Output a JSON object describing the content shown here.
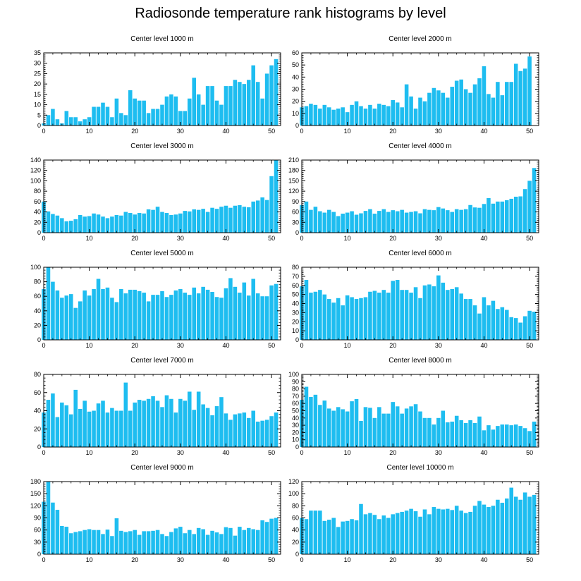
{
  "title": "Radiosonde temperature rank histograms by level",
  "bar_color": "#1ebdf0",
  "chart_data": [
    {
      "type": "bar",
      "title": "Center level 1000 m",
      "xlabel": "",
      "ylabel": "",
      "xlim": [
        0,
        52
      ],
      "ylim": [
        0,
        35
      ],
      "xticks": [
        0,
        10,
        20,
        30,
        40,
        50
      ],
      "yticks": [
        0,
        5,
        10,
        15,
        20,
        25,
        30,
        35
      ],
      "x": [
        0,
        1,
        2,
        3,
        4,
        5,
        6,
        7,
        8,
        9,
        10,
        11,
        12,
        13,
        14,
        15,
        16,
        17,
        18,
        19,
        20,
        21,
        22,
        23,
        24,
        25,
        26,
        27,
        28,
        29,
        30,
        31,
        32,
        33,
        34,
        35,
        36,
        37,
        38,
        39,
        40,
        41,
        42,
        43,
        44,
        45,
        46,
        47,
        48,
        49,
        50,
        51
      ],
      "values": [
        1,
        5,
        8,
        3,
        1,
        7,
        4,
        4,
        2,
        3,
        4,
        9,
        9,
        11,
        9,
        4,
        13,
        6,
        5,
        17,
        13,
        12,
        12,
        6,
        8,
        8,
        10,
        14,
        15,
        14,
        7,
        7,
        13,
        23,
        15,
        10,
        19,
        19,
        12,
        10,
        19,
        19,
        22,
        21,
        20,
        22,
        29,
        21,
        13,
        25,
        29,
        32
      ]
    },
    {
      "type": "bar",
      "title": "Center level 2000 m",
      "xlabel": "",
      "ylabel": "",
      "xlim": [
        0,
        52
      ],
      "ylim": [
        0,
        60
      ],
      "xticks": [
        0,
        10,
        20,
        30,
        40,
        50
      ],
      "yticks": [
        0,
        10,
        20,
        30,
        40,
        50,
        60
      ],
      "x": [
        0,
        1,
        2,
        3,
        4,
        5,
        6,
        7,
        8,
        9,
        10,
        11,
        12,
        13,
        14,
        15,
        16,
        17,
        18,
        19,
        20,
        21,
        22,
        23,
        24,
        25,
        26,
        27,
        28,
        29,
        30,
        31,
        32,
        33,
        34,
        35,
        36,
        37,
        38,
        39,
        40,
        41,
        42,
        43,
        44,
        45,
        46,
        47,
        48,
        49,
        50,
        51
      ],
      "values": [
        15,
        16,
        18,
        17,
        14,
        17,
        15,
        13,
        14,
        15,
        11,
        17,
        20,
        16,
        14,
        17,
        14,
        18,
        17,
        16,
        21,
        19,
        15,
        34,
        24,
        14,
        23,
        20,
        27,
        31,
        29,
        27,
        23,
        32,
        37,
        38,
        30,
        27,
        34,
        39,
        49,
        26,
        23,
        36,
        25,
        36,
        36,
        51,
        45,
        47,
        57,
        0
      ]
    },
    {
      "type": "bar",
      "title": "Center level 3000 m",
      "xlabel": "",
      "ylabel": "",
      "xlim": [
        0,
        52
      ],
      "ylim": [
        0,
        140
      ],
      "xticks": [
        0,
        10,
        20,
        30,
        40,
        50
      ],
      "yticks": [
        0,
        20,
        40,
        60,
        80,
        100,
        120,
        140
      ],
      "x": [
        0,
        1,
        2,
        3,
        4,
        5,
        6,
        7,
        8,
        9,
        10,
        11,
        12,
        13,
        14,
        15,
        16,
        17,
        18,
        19,
        20,
        21,
        22,
        23,
        24,
        25,
        26,
        27,
        28,
        29,
        30,
        31,
        32,
        33,
        34,
        35,
        36,
        37,
        38,
        39,
        40,
        41,
        42,
        43,
        44,
        45,
        46,
        47,
        48,
        49,
        50,
        51
      ],
      "values": [
        60,
        41,
        36,
        33,
        28,
        22,
        23,
        26,
        34,
        31,
        32,
        37,
        35,
        31,
        28,
        31,
        34,
        33,
        40,
        38,
        35,
        38,
        37,
        45,
        44,
        50,
        40,
        38,
        34,
        35,
        37,
        42,
        41,
        45,
        44,
        46,
        40,
        48,
        46,
        50,
        52,
        48,
        52,
        53,
        50,
        49,
        60,
        62,
        68,
        63,
        109,
        140
      ]
    },
    {
      "type": "bar",
      "title": "Center level 4000 m",
      "xlabel": "",
      "ylabel": "",
      "xlim": [
        0,
        52
      ],
      "ylim": [
        0,
        210
      ],
      "xticks": [
        0,
        10,
        20,
        30,
        40,
        50
      ],
      "yticks": [
        0,
        30,
        60,
        90,
        120,
        150,
        180,
        210
      ],
      "x": [
        0,
        1,
        2,
        3,
        4,
        5,
        6,
        7,
        8,
        9,
        10,
        11,
        12,
        13,
        14,
        15,
        16,
        17,
        18,
        19,
        20,
        21,
        22,
        23,
        24,
        25,
        26,
        27,
        28,
        29,
        30,
        31,
        32,
        33,
        34,
        35,
        36,
        37,
        38,
        39,
        40,
        41,
        42,
        43,
        44,
        45,
        46,
        47,
        48,
        49,
        50,
        51
      ],
      "values": [
        80,
        90,
        66,
        75,
        62,
        58,
        66,
        60,
        48,
        55,
        58,
        62,
        52,
        56,
        63,
        68,
        55,
        63,
        68,
        60,
        65,
        62,
        66,
        58,
        60,
        62,
        56,
        68,
        66,
        65,
        74,
        70,
        65,
        60,
        68,
        66,
        68,
        80,
        73,
        72,
        83,
        100,
        84,
        90,
        90,
        94,
        98,
        104,
        105,
        126,
        150,
        187
      ]
    },
    {
      "type": "bar",
      "title": "Center level 5000 m",
      "xlabel": "",
      "ylabel": "",
      "xlim": [
        0,
        52
      ],
      "ylim": [
        0,
        100
      ],
      "xticks": [
        0,
        10,
        20,
        30,
        40,
        50
      ],
      "yticks": [
        0,
        20,
        40,
        60,
        80,
        100
      ],
      "x": [
        0,
        1,
        2,
        3,
        4,
        5,
        6,
        7,
        8,
        9,
        10,
        11,
        12,
        13,
        14,
        15,
        16,
        17,
        18,
        19,
        20,
        21,
        22,
        23,
        24,
        25,
        26,
        27,
        28,
        29,
        30,
        31,
        32,
        33,
        34,
        35,
        36,
        37,
        38,
        39,
        40,
        41,
        42,
        43,
        44,
        45,
        46,
        47,
        48,
        49,
        50,
        51
      ],
      "values": [
        70,
        100,
        80,
        68,
        58,
        61,
        63,
        44,
        53,
        68,
        61,
        70,
        84,
        70,
        72,
        58,
        52,
        70,
        64,
        69,
        69,
        67,
        65,
        53,
        62,
        62,
        67,
        59,
        62,
        68,
        70,
        65,
        62,
        72,
        64,
        73,
        69,
        66,
        59,
        58,
        71,
        85,
        73,
        65,
        79,
        61,
        84,
        64,
        60,
        60,
        75,
        77
      ]
    },
    {
      "type": "bar",
      "title": "Center level 6000 m",
      "xlabel": "",
      "ylabel": "",
      "xlim": [
        0,
        52
      ],
      "ylim": [
        0,
        80
      ],
      "xticks": [
        0,
        10,
        20,
        30,
        40,
        50
      ],
      "yticks": [
        0,
        10,
        20,
        30,
        40,
        50,
        60,
        70,
        80
      ],
      "x": [
        0,
        1,
        2,
        3,
        4,
        5,
        6,
        7,
        8,
        9,
        10,
        11,
        12,
        13,
        14,
        15,
        16,
        17,
        18,
        19,
        20,
        21,
        22,
        23,
        24,
        25,
        26,
        27,
        28,
        29,
        30,
        31,
        32,
        33,
        34,
        35,
        36,
        37,
        38,
        39,
        40,
        41,
        42,
        43,
        44,
        45,
        46,
        47,
        48,
        49,
        50,
        51
      ],
      "values": [
        59,
        66,
        52,
        53,
        55,
        50,
        45,
        41,
        46,
        38,
        49,
        47,
        45,
        46,
        47,
        53,
        54,
        52,
        55,
        52,
        65,
        66,
        55,
        55,
        52,
        58,
        46,
        60,
        61,
        59,
        71,
        63,
        55,
        56,
        58,
        51,
        45,
        45,
        38,
        29,
        47,
        38,
        43,
        34,
        36,
        33,
        25,
        24,
        19,
        26,
        32,
        31
      ]
    },
    {
      "type": "bar",
      "title": "Center level 7000 m",
      "xlabel": "",
      "ylabel": "",
      "xlim": [
        0,
        52
      ],
      "ylim": [
        0,
        80
      ],
      "xticks": [
        0,
        10,
        20,
        30,
        40,
        50
      ],
      "yticks": [
        0,
        20,
        40,
        60,
        80
      ],
      "x": [
        0,
        1,
        2,
        3,
        4,
        5,
        6,
        7,
        8,
        9,
        10,
        11,
        12,
        13,
        14,
        15,
        16,
        17,
        18,
        19,
        20,
        21,
        22,
        23,
        24,
        25,
        26,
        27,
        28,
        29,
        30,
        31,
        32,
        33,
        34,
        35,
        36,
        37,
        38,
        39,
        40,
        41,
        42,
        43,
        44,
        45,
        46,
        47,
        48,
        49,
        50,
        51
      ],
      "values": [
        38,
        52,
        59,
        33,
        49,
        46,
        36,
        63,
        42,
        51,
        39,
        40,
        48,
        51,
        38,
        43,
        40,
        40,
        71,
        40,
        49,
        52,
        51,
        53,
        56,
        51,
        44,
        57,
        53,
        38,
        53,
        51,
        61,
        41,
        61,
        47,
        43,
        35,
        45,
        55,
        37,
        30,
        36,
        37,
        38,
        32,
        40,
        28,
        29,
        30,
        34,
        38
      ]
    },
    {
      "type": "bar",
      "title": "Center level 8000 m",
      "xlabel": "",
      "ylabel": "",
      "xlim": [
        0,
        52
      ],
      "ylim": [
        0,
        100
      ],
      "xticks": [
        0,
        10,
        20,
        30,
        40,
        50
      ],
      "yticks": [
        0,
        10,
        20,
        30,
        40,
        50,
        60,
        70,
        80,
        90,
        100
      ],
      "x": [
        0,
        1,
        2,
        3,
        4,
        5,
        6,
        7,
        8,
        9,
        10,
        11,
        12,
        13,
        14,
        15,
        16,
        17,
        18,
        19,
        20,
        21,
        22,
        23,
        24,
        25,
        26,
        27,
        28,
        29,
        30,
        31,
        32,
        33,
        34,
        35,
        36,
        37,
        38,
        39,
        40,
        41,
        42,
        43,
        44,
        45,
        46,
        47,
        48,
        49,
        50,
        51
      ],
      "values": [
        65,
        83,
        69,
        72,
        58,
        64,
        53,
        50,
        55,
        52,
        49,
        63,
        66,
        36,
        55,
        54,
        40,
        55,
        46,
        46,
        62,
        56,
        46,
        53,
        56,
        59,
        49,
        40,
        40,
        31,
        40,
        50,
        34,
        35,
        43,
        37,
        33,
        37,
        33,
        42,
        23,
        30,
        24,
        29,
        31,
        31,
        30,
        31,
        29,
        26,
        22,
        35
      ]
    },
    {
      "type": "bar",
      "title": "Center level 9000 m",
      "xlabel": "",
      "ylabel": "",
      "xlim": [
        0,
        52
      ],
      "ylim": [
        0,
        180
      ],
      "xticks": [
        0,
        10,
        20,
        30,
        40,
        50
      ],
      "yticks": [
        0,
        30,
        60,
        90,
        120,
        150,
        180
      ],
      "x": [
        0,
        1,
        2,
        3,
        4,
        5,
        6,
        7,
        8,
        9,
        10,
        11,
        12,
        13,
        14,
        15,
        16,
        17,
        18,
        19,
        20,
        21,
        22,
        23,
        24,
        25,
        26,
        27,
        28,
        29,
        30,
        31,
        32,
        33,
        34,
        35,
        36,
        37,
        38,
        39,
        40,
        41,
        42,
        43,
        44,
        45,
        46,
        47,
        48,
        49,
        50,
        51
      ],
      "values": [
        130,
        180,
        128,
        110,
        70,
        68,
        52,
        55,
        57,
        60,
        62,
        60,
        60,
        50,
        61,
        45,
        89,
        58,
        55,
        57,
        60,
        48,
        57,
        57,
        58,
        60,
        50,
        45,
        55,
        64,
        68,
        52,
        60,
        50,
        65,
        62,
        48,
        58,
        54,
        50,
        67,
        65,
        46,
        68,
        60,
        65,
        62,
        60,
        84,
        80,
        88,
        90
      ]
    },
    {
      "type": "bar",
      "title": "Center level 10000 m",
      "xlabel": "",
      "ylabel": "",
      "xlim": [
        0,
        52
      ],
      "ylim": [
        0,
        120
      ],
      "xticks": [
        0,
        10,
        20,
        30,
        40,
        50
      ],
      "yticks": [
        0,
        20,
        40,
        60,
        80,
        100,
        120
      ],
      "x": [
        0,
        1,
        2,
        3,
        4,
        5,
        6,
        7,
        8,
        9,
        10,
        11,
        12,
        13,
        14,
        15,
        16,
        17,
        18,
        19,
        20,
        21,
        22,
        23,
        24,
        25,
        26,
        27,
        28,
        29,
        30,
        31,
        32,
        33,
        34,
        35,
        36,
        37,
        38,
        39,
        40,
        41,
        42,
        43,
        44,
        45,
        46,
        47,
        48,
        49,
        50,
        51
      ],
      "values": [
        60,
        58,
        72,
        72,
        72,
        55,
        57,
        60,
        45,
        54,
        55,
        58,
        56,
        83,
        66,
        68,
        65,
        58,
        64,
        60,
        66,
        68,
        70,
        72,
        75,
        71,
        62,
        74,
        66,
        78,
        75,
        74,
        75,
        73,
        80,
        72,
        68,
        70,
        80,
        88,
        82,
        78,
        80,
        90,
        85,
        92,
        110,
        95,
        90,
        102,
        95,
        98
      ]
    }
  ]
}
